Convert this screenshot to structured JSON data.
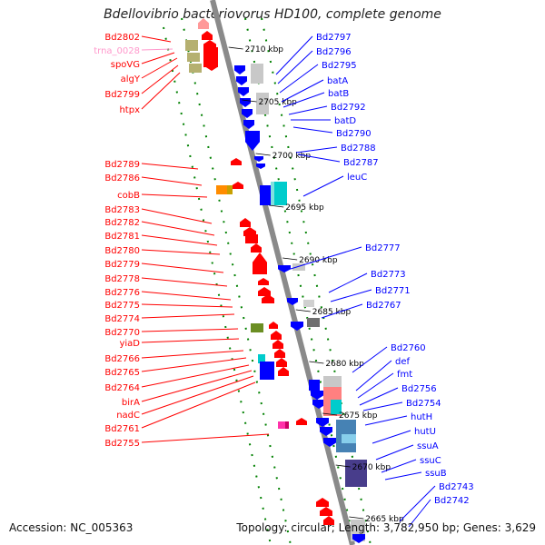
{
  "title": "Bdellovibrio bacteriovorus HD100, complete genome",
  "footer": {
    "accession": "Accession: NC_005363",
    "summary": "Topology: circular; Length: 3,782,950 bp; Genes: 3,629"
  },
  "colors": {
    "forward": "#ff0000",
    "reverse": "#0000ff",
    "rna_label": "#ff99cc",
    "tick": "#008000",
    "backbone": "#808080"
  },
  "scale_labels": [
    "2710 kbp",
    "2705 kbp",
    "2700 kbp",
    "2695 kbp",
    "2690 kbp",
    "2685 kbp",
    "2680 kbp",
    "2675 kbp",
    "2670 kbp",
    "2665 kbp"
  ],
  "left_labels": [
    {
      "text": "Bd2802",
      "kind": "gene"
    },
    {
      "text": "trna_0028",
      "kind": "rna"
    },
    {
      "text": "spoVG",
      "kind": "gene"
    },
    {
      "text": "algY",
      "kind": "gene"
    },
    {
      "text": "Bd2799",
      "kind": "gene"
    },
    {
      "text": "htpx",
      "kind": "gene"
    },
    {
      "text": "Bd2789",
      "kind": "gene"
    },
    {
      "text": "Bd2786",
      "kind": "gene"
    },
    {
      "text": "cobB",
      "kind": "gene"
    },
    {
      "text": "Bd2783",
      "kind": "gene"
    },
    {
      "text": "Bd2782",
      "kind": "gene"
    },
    {
      "text": "Bd2781",
      "kind": "gene"
    },
    {
      "text": "Bd2780",
      "kind": "gene"
    },
    {
      "text": "Bd2779",
      "kind": "gene"
    },
    {
      "text": "Bd2778",
      "kind": "gene"
    },
    {
      "text": "Bd2776",
      "kind": "gene"
    },
    {
      "text": "Bd2775",
      "kind": "gene"
    },
    {
      "text": "Bd2774",
      "kind": "gene"
    },
    {
      "text": "Bd2770",
      "kind": "gene"
    },
    {
      "text": "yiaD",
      "kind": "gene"
    },
    {
      "text": "Bd2766",
      "kind": "gene"
    },
    {
      "text": "Bd2765",
      "kind": "gene"
    },
    {
      "text": "Bd2764",
      "kind": "gene"
    },
    {
      "text": "birA",
      "kind": "gene"
    },
    {
      "text": "nadC",
      "kind": "gene"
    },
    {
      "text": "Bd2761",
      "kind": "gene"
    },
    {
      "text": "Bd2755",
      "kind": "gene"
    }
  ],
  "right_labels": [
    "Bd2797",
    "Bd2796",
    "Bd2795",
    "batA",
    "batB",
    "Bd2792",
    "batD",
    "Bd2790",
    "Bd2788",
    "Bd2787",
    "leuC",
    "Bd2777",
    "Bd2773",
    "Bd2771",
    "Bd2767",
    "Bd2760",
    "def",
    "fmt",
    "Bd2756",
    "Bd2754",
    "hutH",
    "hutU",
    "ssuA",
    "ssuC",
    "ssuB",
    "Bd2743",
    "Bd2742"
  ]
}
